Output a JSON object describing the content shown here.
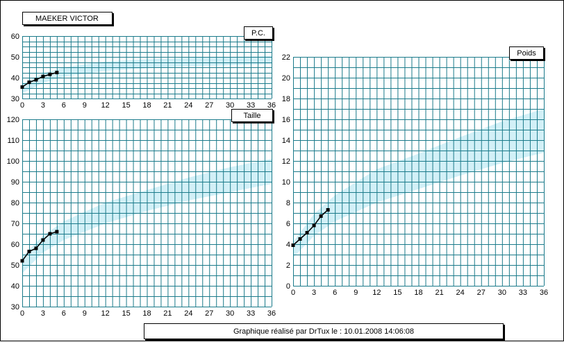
{
  "header": {
    "patient_name": "MAEKER VICTOR"
  },
  "footer": {
    "text": "Graphique réalisé par DrTux le : 10.01.2008 14:06:08"
  },
  "colors": {
    "grid": "#1a7a8a",
    "band": "#cdeef6",
    "line": "#000000"
  },
  "chart_data": [
    {
      "id": "pc",
      "type": "line",
      "title": "P.C.",
      "xlim": [
        0,
        36
      ],
      "ylim": [
        30,
        60
      ],
      "x_ticks": [
        0,
        3,
        6,
        9,
        12,
        15,
        18,
        21,
        24,
        27,
        30,
        33,
        36
      ],
      "y_ticks": [
        30,
        40,
        50,
        60
      ],
      "grid": true,
      "series": [
        {
          "x": [
            0,
            1,
            2,
            3,
            4,
            5
          ],
          "y": [
            35.5,
            37.8,
            39.0,
            40.6,
            41.6,
            42.5
          ]
        }
      ],
      "band": {
        "x": [
          0,
          3,
          6,
          12,
          18,
          24,
          30,
          36
        ],
        "low": [
          32.5,
          37.5,
          40.5,
          43.3,
          44.6,
          45.5,
          46.0,
          46.5
        ],
        "high": [
          37.0,
          42.0,
          45.0,
          47.8,
          48.8,
          49.6,
          50.0,
          50.4
        ]
      }
    },
    {
      "id": "taille",
      "type": "line",
      "title": "Taille",
      "xlim": [
        0,
        36
      ],
      "ylim": [
        30,
        120
      ],
      "x_ticks": [
        0,
        3,
        6,
        9,
        12,
        15,
        18,
        21,
        24,
        27,
        30,
        33,
        36
      ],
      "y_ticks": [
        30,
        40,
        50,
        60,
        70,
        80,
        90,
        100,
        110,
        120
      ],
      "grid": true,
      "series": [
        {
          "x": [
            0,
            1,
            2,
            3,
            4,
            5
          ],
          "y": [
            52,
            56.5,
            58,
            62,
            65,
            66
          ]
        }
      ],
      "band": {
        "x": [
          0,
          3,
          6,
          12,
          18,
          24,
          30,
          36
        ],
        "low": [
          46,
          56,
          62,
          70,
          76,
          81,
          85,
          89
        ],
        "high": [
          54,
          64,
          71,
          80,
          86,
          92,
          97,
          101
        ]
      }
    },
    {
      "id": "poids",
      "type": "line",
      "title": "Poids",
      "xlim": [
        0,
        36
      ],
      "ylim": [
        0,
        22
      ],
      "x_ticks": [
        0,
        3,
        6,
        9,
        12,
        15,
        18,
        21,
        24,
        27,
        30,
        33,
        36
      ],
      "y_ticks": [
        0,
        2,
        4,
        6,
        8,
        10,
        12,
        14,
        16,
        18,
        20,
        22
      ],
      "grid": true,
      "series": [
        {
          "x": [
            0,
            1,
            2,
            3,
            4,
            5
          ],
          "y": [
            3.9,
            4.5,
            5.1,
            5.8,
            6.7,
            7.3
          ]
        }
      ],
      "band": {
        "x": [
          0,
          3,
          6,
          12,
          18,
          24,
          30,
          36
        ],
        "low": [
          2.7,
          4.8,
          6.2,
          8.0,
          9.3,
          10.6,
          11.8,
          12.8
        ],
        "high": [
          4.2,
          6.9,
          8.7,
          11.2,
          12.7,
          14.3,
          15.8,
          17.0
        ]
      }
    }
  ]
}
